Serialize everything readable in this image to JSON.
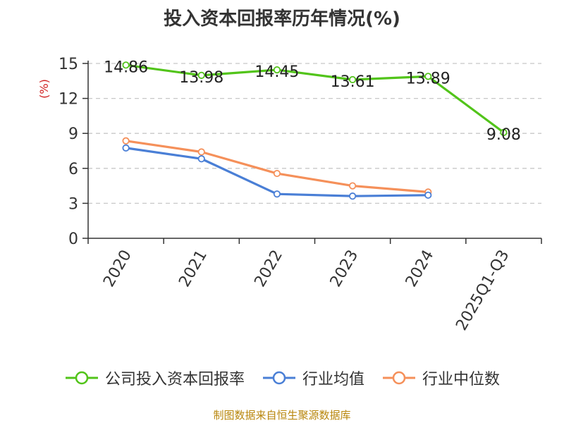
{
  "chart_data": {
    "type": "line",
    "title": "投入资本回报率历年情况(%)",
    "ylabel": "(%)",
    "xlabel": "",
    "categories": [
      "2020",
      "2021",
      "2022",
      "2023",
      "2024",
      "2025Q1-Q3"
    ],
    "ylim": [
      0,
      15
    ],
    "yticks": [
      0,
      3,
      6,
      9,
      12,
      15
    ],
    "grid": true,
    "legend_position": "bottom",
    "series": [
      {
        "name": "公司投入资本回报率",
        "color": "#52c41a",
        "values": [
          14.86,
          13.98,
          14.45,
          13.61,
          13.89,
          9.08
        ],
        "labels": [
          "14.86",
          "13.98",
          "14.45",
          "13.61",
          "13.89",
          "9.08"
        ]
      },
      {
        "name": "行业均值",
        "color": "#4a7fd6",
        "values": [
          7.75,
          6.82,
          3.8,
          3.62,
          3.7,
          null
        ],
        "labels": []
      },
      {
        "name": "行业中位数",
        "color": "#f5905a",
        "values": [
          8.36,
          7.41,
          5.56,
          4.5,
          3.97,
          null
        ],
        "labels": []
      }
    ],
    "source": "制图数据来自恒生聚源数据库"
  }
}
